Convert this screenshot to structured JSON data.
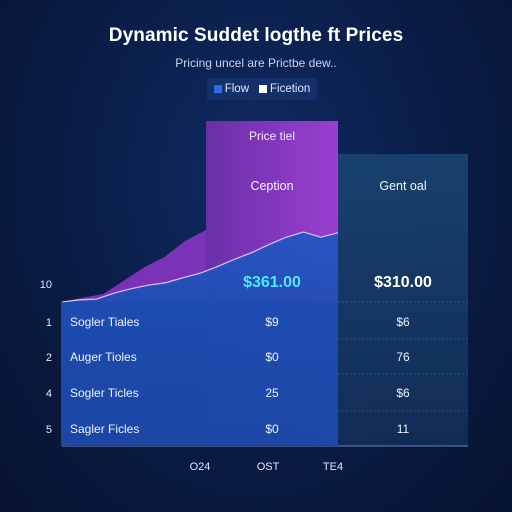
{
  "chart_data": {
    "type": "area",
    "title": "Dynamic Suddet logthe ft Prices",
    "subtitle": "Pricing uncel are Prictbe dew..",
    "legend": [
      {
        "name": "Flow",
        "color": "#2f6de0"
      },
      {
        "name": "Ficetion",
        "color": "#ffffff"
      }
    ],
    "y_ticks": [
      "10",
      "1",
      "2",
      "4",
      "5"
    ],
    "x_ticks": [
      "O24",
      "OST",
      "TE4"
    ],
    "series": [
      {
        "color": "#8e35c8",
        "points": [
          [
            0,
            0
          ],
          [
            1,
            0.8
          ],
          [
            2,
            1.5
          ],
          [
            3,
            4
          ],
          [
            4,
            6.5
          ],
          [
            5,
            8.5
          ],
          [
            6,
            11.5
          ],
          [
            7,
            13.5
          ]
        ]
      },
      {
        "color": "#1e4fb4",
        "points": [
          [
            0,
            0
          ],
          [
            1,
            0.3
          ],
          [
            2,
            0.4
          ],
          [
            3,
            1.2
          ],
          [
            4,
            1.8
          ],
          [
            5,
            2.3
          ],
          [
            6,
            2.6
          ],
          [
            7,
            3.3
          ],
          [
            8,
            3.9
          ],
          [
            9,
            4.8
          ],
          [
            10,
            5.8
          ],
          [
            11,
            6.7
          ],
          [
            12,
            7.8
          ],
          [
            13,
            8.8
          ],
          [
            14,
            9.5
          ],
          [
            15,
            8.8
          ],
          [
            16,
            9.4
          ]
        ]
      }
    ],
    "panels": [
      {
        "header": "Price tiel",
        "label": "Ception",
        "price": "$361.00",
        "values": [
          "$9",
          "$0",
          "25",
          "$0"
        ],
        "color": "#7a2fc2"
      },
      {
        "header": "",
        "label": "Gent oal",
        "price": "$310.00",
        "values": [
          "$6",
          "76",
          "$6",
          "11"
        ],
        "color": "#173d74"
      }
    ],
    "rows": [
      "Sogler Tiales",
      "Auger Tioles",
      "Sogler Ticles",
      "Sagler Ficles"
    ]
  }
}
